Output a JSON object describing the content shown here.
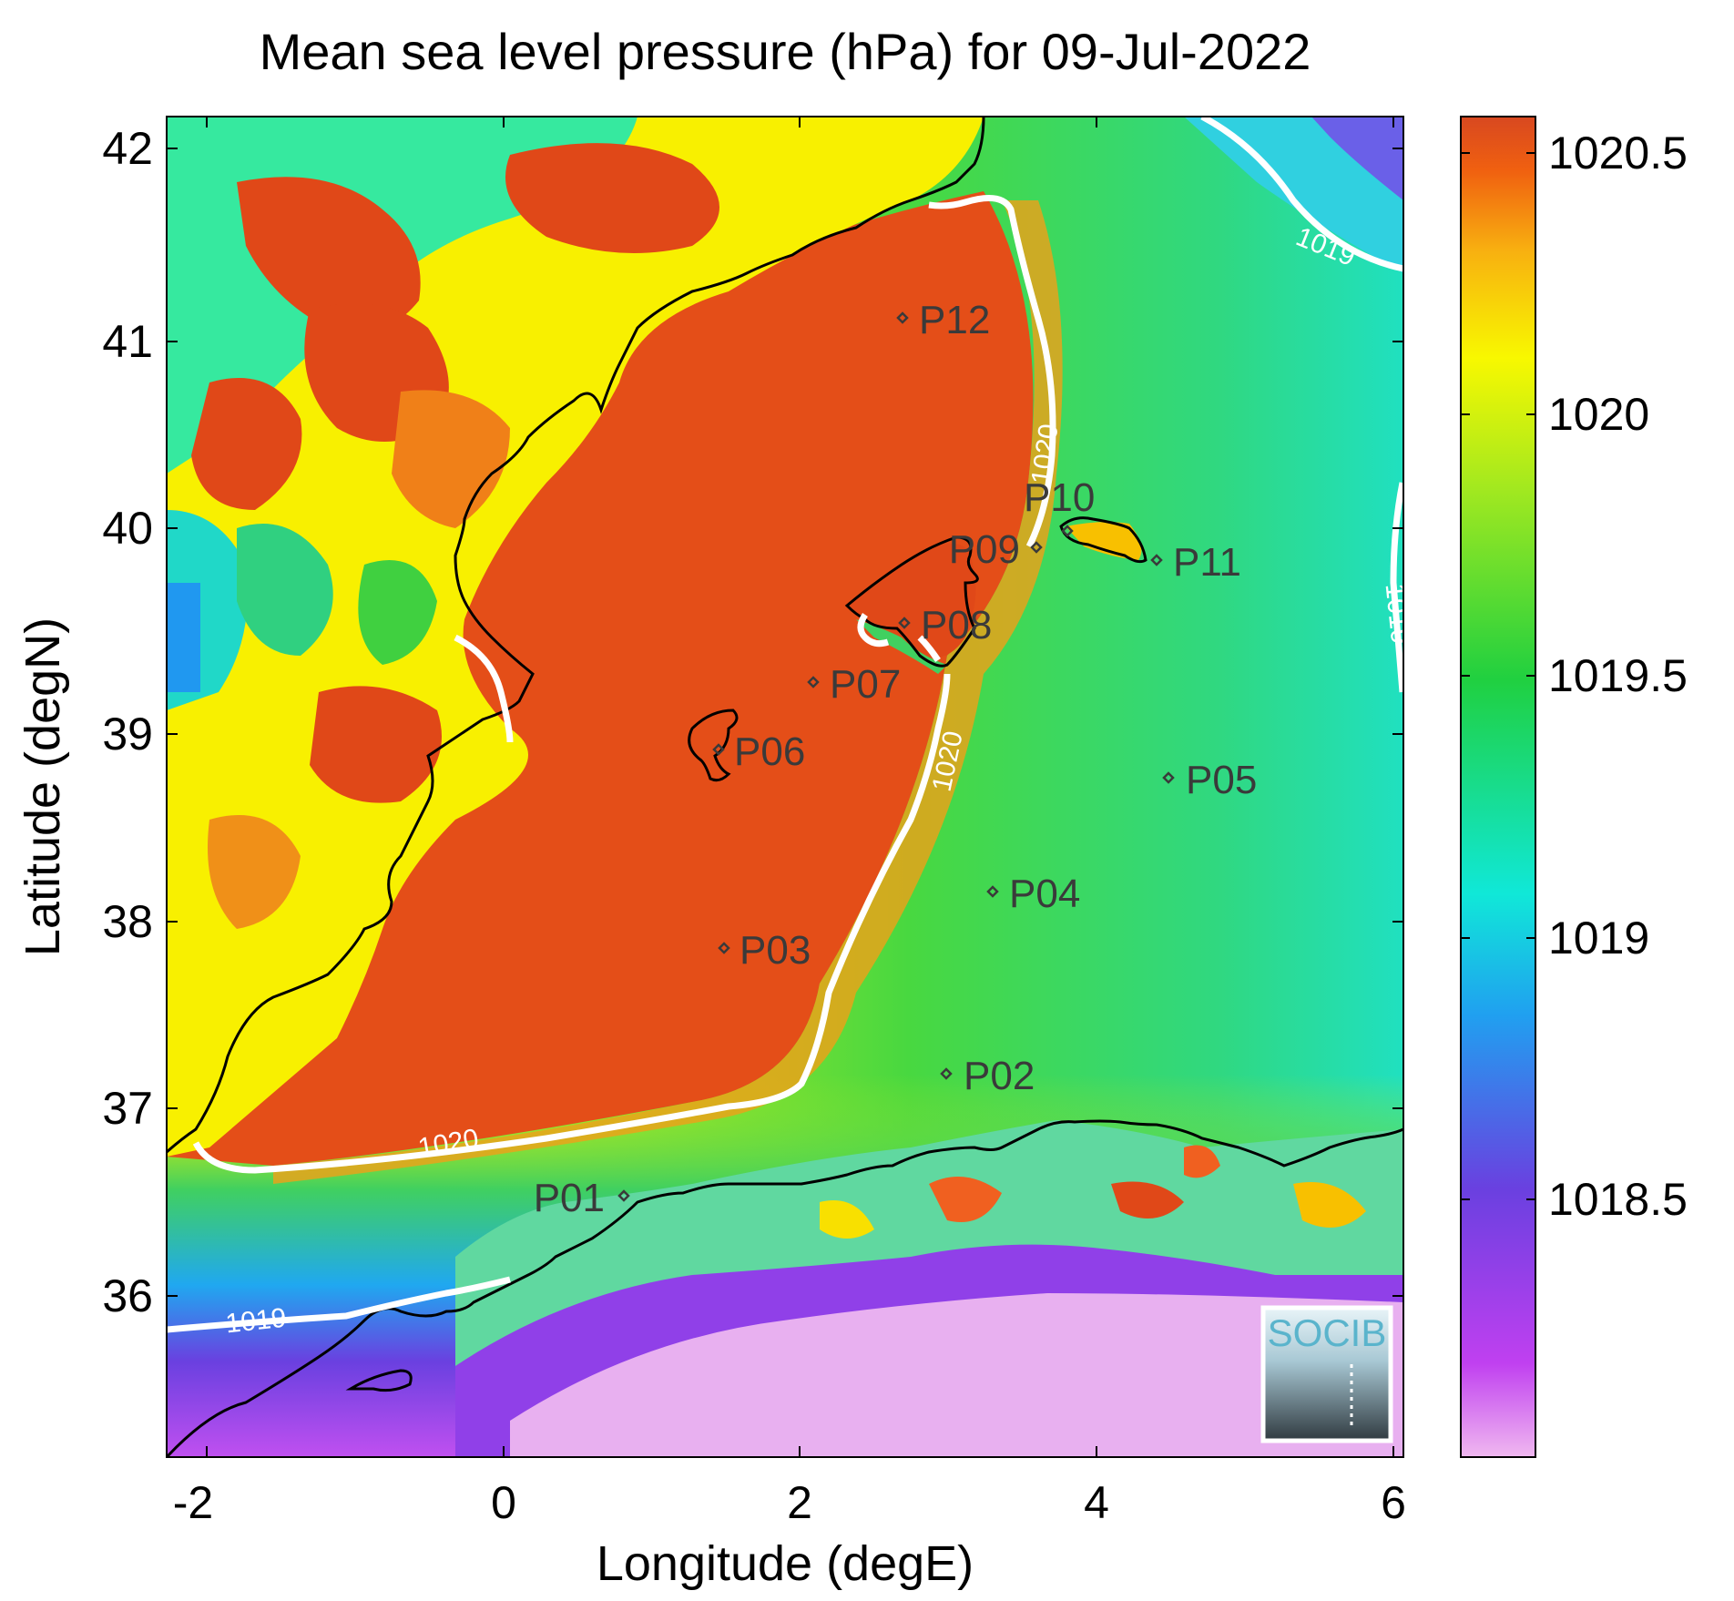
{
  "title": "Mean sea level pressure (hPa) for 09-Jul-2022",
  "xlabel": "Longitude (degE)",
  "ylabel": "Latitude (degN)",
  "x_ticks": [
    "-2",
    "0",
    "2",
    "4",
    "6"
  ],
  "y_ticks": [
    "36",
    "37",
    "38",
    "39",
    "40",
    "41",
    "42"
  ],
  "colorbar": {
    "ticks": [
      "1018.5",
      "1019",
      "1019.5",
      "1020",
      "1020.5"
    ],
    "colors": [
      "#f0b8f0",
      "#c040f0",
      "#6a40e0",
      "#20a0f0",
      "#10e8d8",
      "#20d040",
      "#a0e820",
      "#f8f800",
      "#f8b010",
      "#f06010",
      "#d84820"
    ]
  },
  "contour_labels": [
    "1020",
    "1020",
    "1020",
    "1019",
    "1019",
    "1019"
  ],
  "points": [
    {
      "id": "P01"
    },
    {
      "id": "P02"
    },
    {
      "id": "P03"
    },
    {
      "id": "P04"
    },
    {
      "id": "P05"
    },
    {
      "id": "P06"
    },
    {
      "id": "P07"
    },
    {
      "id": "P08"
    },
    {
      "id": "P09"
    },
    {
      "id": "P10"
    },
    {
      "id": "P11"
    },
    {
      "id": "P12"
    }
  ],
  "logo": {
    "text": "SOCIB"
  }
}
